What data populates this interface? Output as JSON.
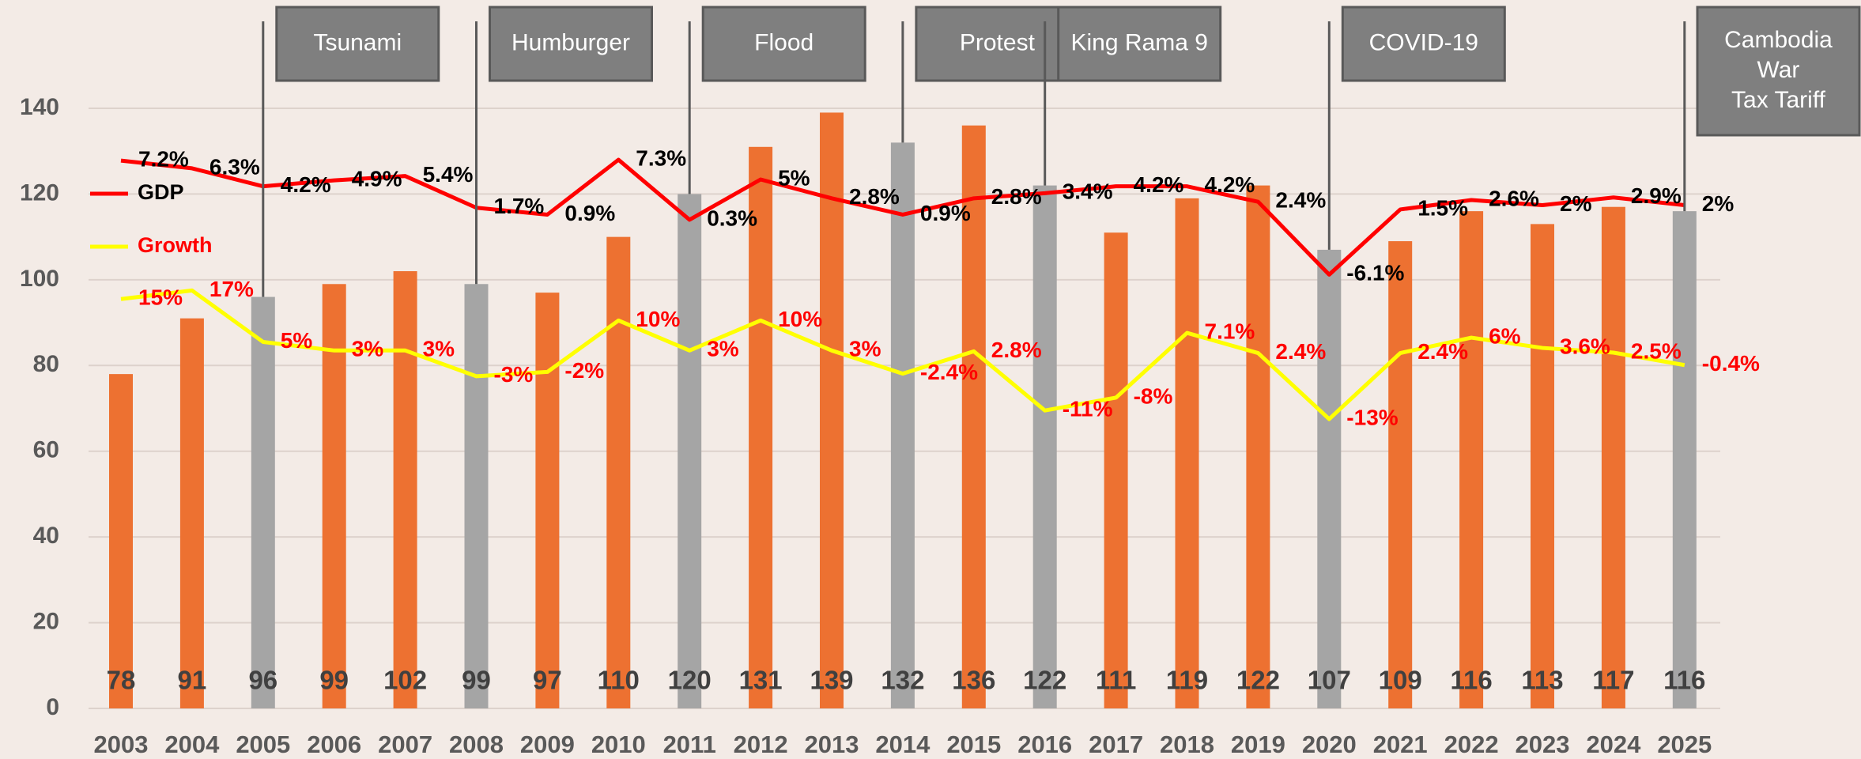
{
  "chart_data": {
    "type": "bar",
    "categories": [
      "2003",
      "2004",
      "2005",
      "2006",
      "2007",
      "2008",
      "2009",
      "2010",
      "2011",
      "2012",
      "2013",
      "2014",
      "2015",
      "2016",
      "2017",
      "2018",
      "2019",
      "2020",
      "2021",
      "2022",
      "2023",
      "2024",
      "2025"
    ],
    "ylim": [
      0,
      140
    ],
    "yticks": [
      0,
      20,
      40,
      60,
      80,
      100,
      120,
      140
    ],
    "grid": true,
    "y2lim": [
      -56.7,
      13.3
    ],
    "y3lim": [
      -80.5,
      59.5
    ],
    "legend": "top-left",
    "series": [
      {
        "type": "bar",
        "values": [
          78,
          91,
          96,
          99,
          102,
          99,
          97,
          110,
          120,
          131,
          139,
          132,
          136,
          122,
          111,
          119,
          122,
          107,
          109,
          116,
          113,
          117,
          116
        ],
        "colors": [
          "#ed7131",
          "#ed7131",
          "#a5a5a5",
          "#ed7131",
          "#ed7131",
          "#a5a5a5",
          "#ed7131",
          "#ed7131",
          "#a5a5a5",
          "#ed7131",
          "#ed7131",
          "#a5a5a5",
          "#ed7131",
          "#a5a5a5",
          "#ed7131",
          "#ed7131",
          "#ed7131",
          "#a5a5a5",
          "#ed7131",
          "#ed7131",
          "#ed7131",
          "#ed7131",
          "#a5a5a5"
        ]
      },
      {
        "type": "line",
        "name": "GDP",
        "color": "#ff0000",
        "label_color": "#000000",
        "axis": "y2",
        "values": [
          7.2,
          6.3,
          4.2,
          4.9,
          5.4,
          1.7,
          0.9,
          7.3,
          0.3,
          5,
          2.8,
          0.9,
          2.8,
          3.4,
          4.2,
          4.2,
          2.4,
          -6.1,
          1.5,
          2.6,
          2,
          2.9,
          2
        ],
        "value_labels": [
          "7.2%",
          "6.3%",
          "4.2%",
          "4.9%",
          "5.4%",
          "1.7%",
          "0.9%",
          "7.3%",
          "0.3%",
          "5%",
          "2.8%",
          "0.9%",
          "2.8%",
          "3.4%",
          "4.2%",
          "4.2%",
          "2.4%",
          "-6.1%",
          "1.5%",
          "2.6%",
          "2%",
          "2.9%",
          "2%"
        ]
      },
      {
        "type": "line",
        "name": "Growth",
        "color": "#ffff00",
        "label_color": "#ff0000",
        "axis": "y3",
        "values": [
          15,
          17,
          5,
          3,
          3,
          -3,
          -2,
          10,
          3,
          10,
          3,
          -2.4,
          2.8,
          -11,
          -8,
          7.1,
          2.4,
          -13,
          2.4,
          6,
          3.6,
          2.5,
          -0.4
        ],
        "value_labels": [
          "15%",
          "17%",
          "5%",
          "3%",
          "3%",
          "-3%",
          "-2%",
          "10%",
          "3%",
          "10%",
          "3%",
          "-2.4%",
          "2.8%",
          "-11%",
          "-8%",
          "7.1%",
          "2.4%",
          "-13%",
          "2.4%",
          "6%",
          "3.6%",
          "2.5%",
          "-0.4%"
        ]
      }
    ],
    "annotations": [
      {
        "text": "Tsunami",
        "category": "2005"
      },
      {
        "text": "Humburger",
        "category": "2008"
      },
      {
        "text": "Flood",
        "category": "2011"
      },
      {
        "text": "Protest",
        "category": "2014"
      },
      {
        "text": "King Rama 9",
        "category": "2016"
      },
      {
        "text": "COVID-19",
        "category": "2020"
      },
      {
        "text": [
          "Cambodia",
          "War",
          "Tax Tariff"
        ],
        "category": "2025"
      }
    ]
  }
}
